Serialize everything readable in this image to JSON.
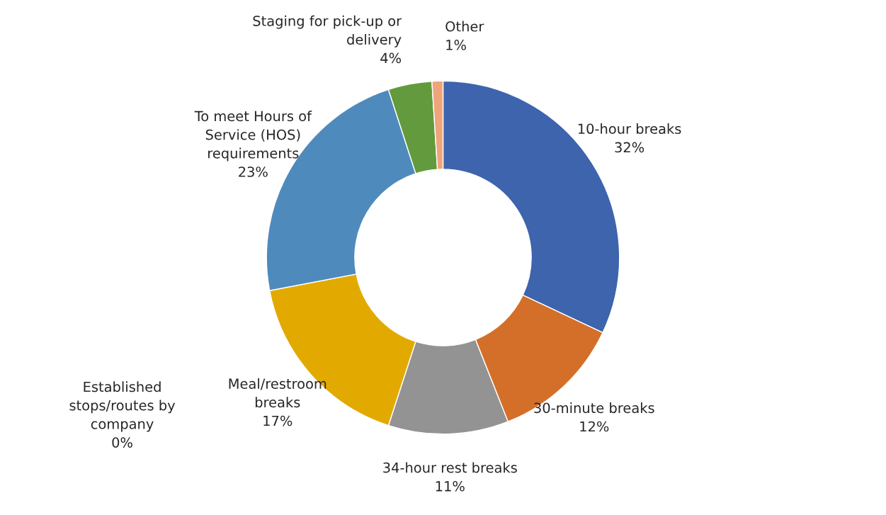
{
  "chart_data": {
    "type": "donut",
    "categories": [
      "10-hour breaks",
      "30-minute breaks",
      "34-hour rest breaks",
      "Meal/restroom\nbreaks",
      "Established\nstops/routes by\ncompany",
      "To meet Hours of\nService (HOS)\nrequirements",
      "Staging for pick-up or\ndelivery",
      "Other"
    ],
    "values": [
      32,
      12,
      11,
      17,
      0,
      23,
      4,
      1
    ],
    "colors": [
      "#3d64ad",
      "#d46f2a",
      "#939393",
      "#e2aa00",
      "#3f5e9c",
      "#4f8abc",
      "#629a3d",
      "#f0a47a"
    ],
    "value_labels": [
      "32%",
      "12%",
      "11%",
      "17%",
      "0%",
      "23%",
      "4%",
      "1%"
    ],
    "legend": false
  }
}
